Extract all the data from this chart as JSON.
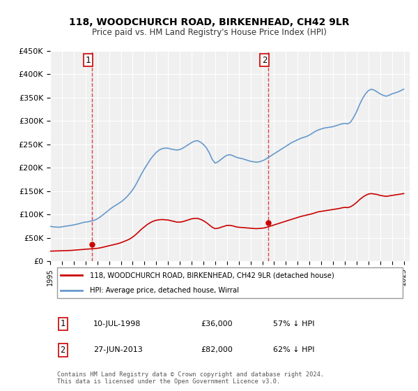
{
  "title": "118, WOODCHURCH ROAD, BIRKENHEAD, CH42 9LR",
  "subtitle": "Price paid vs. HM Land Registry's House Price Index (HPI)",
  "ylabel": "",
  "xlabel": "",
  "ylim": [
    0,
    450000
  ],
  "yticks": [
    0,
    50000,
    100000,
    150000,
    200000,
    250000,
    300000,
    350000,
    400000,
    450000
  ],
  "ytick_labels": [
    "£0",
    "£50K",
    "£100K",
    "£150K",
    "£200K",
    "£250K",
    "£300K",
    "£350K",
    "£400K",
    "£450K"
  ],
  "background_color": "#ffffff",
  "plot_bg_color": "#f0f0f0",
  "grid_color": "#ffffff",
  "hpi_color": "#6699cc",
  "price_color": "#cc0000",
  "dashed_line_color": "#cc0000",
  "sale1_year": 1998.53,
  "sale1_price": 36000,
  "sale2_year": 2013.49,
  "sale2_price": 82000,
  "legend_line1": "118, WOODCHURCH ROAD, BIRKENHEAD, CH42 9LR (detached house)",
  "legend_line2": "HPI: Average price, detached house, Wirral",
  "annotation1_label": "1",
  "annotation1_date": "10-JUL-1998",
  "annotation1_price": "£36,000",
  "annotation1_pct": "57% ↓ HPI",
  "annotation2_label": "2",
  "annotation2_date": "27-JUN-2013",
  "annotation2_price": "£82,000",
  "annotation2_pct": "62% ↓ HPI",
  "footer": "Contains HM Land Registry data © Crown copyright and database right 2024.\nThis data is licensed under the Open Government Licence v3.0.",
  "hpi_data": {
    "years": [
      1995.0,
      1995.25,
      1995.5,
      1995.75,
      1996.0,
      1996.25,
      1996.5,
      1996.75,
      1997.0,
      1997.25,
      1997.5,
      1997.75,
      1998.0,
      1998.25,
      1998.5,
      1998.75,
      1999.0,
      1999.25,
      1999.5,
      1999.75,
      2000.0,
      2000.25,
      2000.5,
      2000.75,
      2001.0,
      2001.25,
      2001.5,
      2001.75,
      2002.0,
      2002.25,
      2002.5,
      2002.75,
      2003.0,
      2003.25,
      2003.5,
      2003.75,
      2004.0,
      2004.25,
      2004.5,
      2004.75,
      2005.0,
      2005.25,
      2005.5,
      2005.75,
      2006.0,
      2006.25,
      2006.5,
      2006.75,
      2007.0,
      2007.25,
      2007.5,
      2007.75,
      2008.0,
      2008.25,
      2008.5,
      2008.75,
      2009.0,
      2009.25,
      2009.5,
      2009.75,
      2010.0,
      2010.25,
      2010.5,
      2010.75,
      2011.0,
      2011.25,
      2011.5,
      2011.75,
      2012.0,
      2012.25,
      2012.5,
      2012.75,
      2013.0,
      2013.25,
      2013.5,
      2013.75,
      2014.0,
      2014.25,
      2014.5,
      2014.75,
      2015.0,
      2015.25,
      2015.5,
      2015.75,
      2016.0,
      2016.25,
      2016.5,
      2016.75,
      2017.0,
      2017.25,
      2017.5,
      2017.75,
      2018.0,
      2018.25,
      2018.5,
      2018.75,
      2019.0,
      2019.25,
      2019.5,
      2019.75,
      2020.0,
      2020.25,
      2020.5,
      2020.75,
      2021.0,
      2021.25,
      2021.5,
      2021.75,
      2022.0,
      2022.25,
      2022.5,
      2022.75,
      2023.0,
      2023.25,
      2023.5,
      2023.75,
      2024.0,
      2024.25,
      2024.5,
      2024.75,
      2025.0
    ],
    "values": [
      75000,
      74000,
      73500,
      73000,
      74000,
      75000,
      76000,
      77000,
      78000,
      79500,
      81000,
      83000,
      84000,
      85000,
      86500,
      88000,
      91000,
      95000,
      100000,
      105000,
      110000,
      115000,
      119000,
      123000,
      127000,
      132000,
      138000,
      145000,
      153000,
      163000,
      175000,
      187000,
      198000,
      208000,
      218000,
      226000,
      233000,
      238000,
      241000,
      242000,
      242000,
      240000,
      239000,
      238000,
      239000,
      242000,
      246000,
      250000,
      254000,
      257000,
      258000,
      255000,
      250000,
      243000,
      232000,
      218000,
      210000,
      213000,
      218000,
      223000,
      227000,
      228000,
      226000,
      223000,
      221000,
      220000,
      218000,
      216000,
      214000,
      213000,
      212000,
      213000,
      215000,
      218000,
      222000,
      226000,
      230000,
      234000,
      238000,
      242000,
      246000,
      250000,
      254000,
      257000,
      260000,
      263000,
      265000,
      267000,
      270000,
      274000,
      278000,
      281000,
      283000,
      285000,
      286000,
      287000,
      288000,
      290000,
      292000,
      294000,
      295000,
      294000,
      298000,
      308000,
      320000,
      335000,
      348000,
      358000,
      365000,
      368000,
      366000,
      362000,
      358000,
      355000,
      353000,
      355000,
      358000,
      360000,
      362000,
      365000,
      368000
    ]
  },
  "price_data": {
    "years": [
      1995.0,
      1995.25,
      1995.5,
      1995.75,
      1996.0,
      1996.25,
      1996.5,
      1996.75,
      1997.0,
      1997.25,
      1997.5,
      1997.75,
      1998.0,
      1998.25,
      1998.5,
      1998.75,
      1999.0,
      1999.25,
      1999.5,
      1999.75,
      2000.0,
      2000.25,
      2000.5,
      2000.75,
      2001.0,
      2001.25,
      2001.5,
      2001.75,
      2002.0,
      2002.25,
      2002.5,
      2002.75,
      2003.0,
      2003.25,
      2003.5,
      2003.75,
      2004.0,
      2004.25,
      2004.5,
      2004.75,
      2005.0,
      2005.25,
      2005.5,
      2005.75,
      2006.0,
      2006.25,
      2006.5,
      2006.75,
      2007.0,
      2007.25,
      2007.5,
      2007.75,
      2008.0,
      2008.25,
      2008.5,
      2008.75,
      2009.0,
      2009.25,
      2009.5,
      2009.75,
      2010.0,
      2010.25,
      2010.5,
      2010.75,
      2011.0,
      2011.25,
      2011.5,
      2011.75,
      2012.0,
      2012.25,
      2012.5,
      2012.75,
      2013.0,
      2013.25,
      2013.5,
      2013.75,
      2014.0,
      2014.25,
      2014.5,
      2014.75,
      2015.0,
      2015.25,
      2015.5,
      2015.75,
      2016.0,
      2016.25,
      2016.5,
      2016.75,
      2017.0,
      2017.25,
      2017.5,
      2017.75,
      2018.0,
      2018.25,
      2018.5,
      2018.75,
      2019.0,
      2019.25,
      2019.5,
      2019.75,
      2020.0,
      2020.25,
      2020.5,
      2020.75,
      2021.0,
      2021.25,
      2021.5,
      2021.75,
      2022.0,
      2022.25,
      2022.5,
      2022.75,
      2023.0,
      2023.25,
      2023.5,
      2023.75,
      2024.0,
      2024.25,
      2024.5,
      2024.75,
      2025.0
    ],
    "values": [
      22000,
      22200,
      22400,
      22600,
      22800,
      23000,
      23200,
      23500,
      24000,
      24500,
      25000,
      25500,
      26000,
      26500,
      27000,
      27500,
      28000,
      29000,
      30500,
      32000,
      33500,
      35000,
      36500,
      38000,
      40000,
      42500,
      45000,
      48000,
      52000,
      57000,
      63000,
      69000,
      74000,
      79000,
      83000,
      86000,
      88000,
      89000,
      89500,
      89000,
      88500,
      87000,
      85500,
      84000,
      84000,
      85000,
      87000,
      89000,
      91000,
      92000,
      92000,
      90000,
      87000,
      83000,
      78000,
      73000,
      70000,
      71000,
      73000,
      75000,
      77000,
      77000,
      76000,
      74000,
      73000,
      72500,
      72000,
      71500,
      71000,
      70500,
      70000,
      70500,
      71000,
      72000,
      74000,
      76000,
      78000,
      80000,
      82000,
      84000,
      86000,
      88000,
      90000,
      92000,
      94000,
      96000,
      97500,
      99000,
      100500,
      102000,
      104000,
      106000,
      107000,
      108000,
      109000,
      110000,
      111000,
      112000,
      113000,
      114500,
      115500,
      115000,
      117000,
      121000,
      126000,
      132000,
      137000,
      141000,
      144000,
      145000,
      144000,
      143000,
      141000,
      140000,
      139000,
      140000,
      141000,
      142000,
      143000,
      144000,
      145000
    ]
  }
}
